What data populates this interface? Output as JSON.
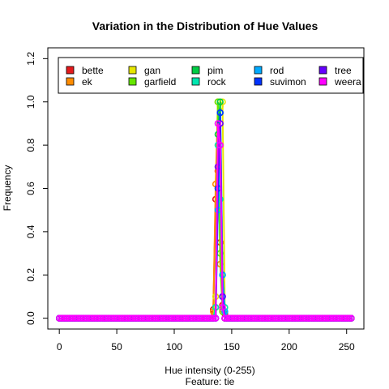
{
  "chart_data": {
    "type": "line",
    "title": "Variation in the Distribution of Hue Values",
    "xlabel": "Hue  intensity (0-255)",
    "xlabel_sub": "Feature: tie",
    "ylabel": "Frequency",
    "xlim": [
      0,
      255
    ],
    "ylim": [
      0,
      1.2
    ],
    "x_ticks": [
      0,
      50,
      100,
      150,
      200,
      250
    ],
    "y_ticks": [
      0.0,
      0.2,
      0.4,
      0.6,
      0.8,
      1.0,
      1.2
    ],
    "x_tick_labels": [
      "0",
      "50",
      "100",
      "150",
      "200",
      "250"
    ],
    "y_tick_labels": [
      "0.0",
      "0.2",
      "0.4",
      "0.6",
      "0.8",
      "1.0",
      "1.2"
    ],
    "grid": false,
    "legend_position": "top",
    "x_step": 2,
    "series": [
      {
        "name": "bette",
        "color": "#E41A1C",
        "peaks": [
          [
            134,
            0.04
          ],
          [
            136,
            0.55
          ],
          [
            138,
            0.68
          ],
          [
            140,
            0.35
          ],
          [
            142,
            0.06
          ],
          [
            144,
            0.02
          ]
        ]
      },
      {
        "name": "ek",
        "color": "#FF8C00",
        "peaks": [
          [
            134,
            0.03
          ],
          [
            136,
            0.62
          ],
          [
            138,
            1.0
          ],
          [
            140,
            0.25
          ],
          [
            142,
            0.04
          ]
        ]
      },
      {
        "name": "gan",
        "color": "#E6E600",
        "peaks": [
          [
            136,
            0.1
          ],
          [
            138,
            0.5
          ],
          [
            140,
            0.98
          ],
          [
            142,
            1.0
          ],
          [
            144,
            0.05
          ]
        ]
      },
      {
        "name": "garfield",
        "color": "#66E600",
        "peaks": [
          [
            136,
            0.05
          ],
          [
            138,
            1.0
          ],
          [
            140,
            0.3
          ],
          [
            142,
            0.03
          ]
        ]
      },
      {
        "name": "pim",
        "color": "#00CC44",
        "peaks": [
          [
            136,
            0.05
          ],
          [
            138,
            0.85
          ],
          [
            140,
            1.0
          ],
          [
            142,
            0.2
          ],
          [
            144,
            0.03
          ]
        ]
      },
      {
        "name": "rock",
        "color": "#00E6B0",
        "peaks": [
          [
            136,
            0.05
          ],
          [
            138,
            0.8
          ],
          [
            140,
            0.55
          ],
          [
            142,
            0.2
          ],
          [
            144,
            0.05
          ]
        ]
      },
      {
        "name": "rod",
        "color": "#00AAFF",
        "peaks": [
          [
            138,
            0.5
          ],
          [
            140,
            0.95
          ],
          [
            142,
            0.2
          ],
          [
            144,
            0.03
          ]
        ]
      },
      {
        "name": "suvimon",
        "color": "#0033FF",
        "peaks": [
          [
            138,
            0.6
          ],
          [
            140,
            0.95
          ],
          [
            142,
            0.1
          ]
        ]
      },
      {
        "name": "tree",
        "color": "#6600FF",
        "peaks": [
          [
            138,
            0.7
          ],
          [
            140,
            0.9
          ],
          [
            142,
            0.1
          ]
        ]
      },
      {
        "name": "weera",
        "color": "#FF00FF",
        "peaks": [
          [
            138,
            0.9
          ],
          [
            140,
            0.8
          ],
          [
            142,
            0.05
          ]
        ]
      }
    ]
  }
}
